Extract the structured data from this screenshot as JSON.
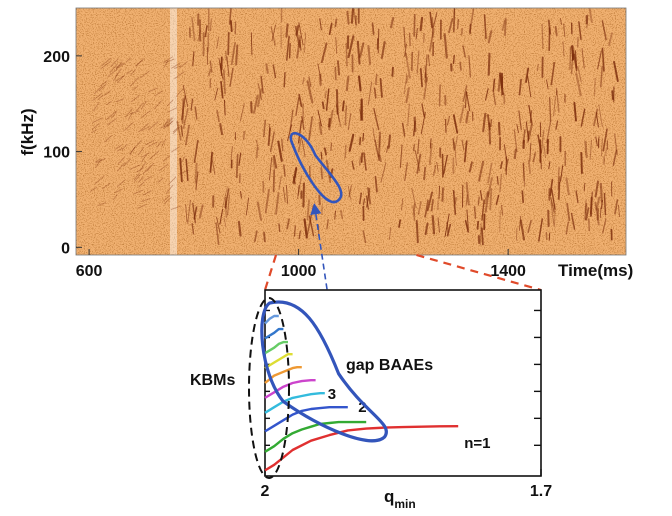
{
  "colors": {
    "spectrogram_background": "#f0b070",
    "spectrogram_mode": "#7a2a0a",
    "ellipse_blue": "#3355bb",
    "projection_red": "#e04a2a",
    "kbm_dash": "#111111"
  },
  "chart_data": [
    {
      "type": "heatmap",
      "title": "",
      "xlabel": "Time(ms)",
      "ylabel": "f(kHz)",
      "xlim": [
        575,
        1625
      ],
      "ylim": [
        -8,
        250
      ],
      "x_ticks": [
        {
          "value": 600,
          "label": "600"
        },
        {
          "value": 1000,
          "label": "1000"
        },
        {
          "value": 1400,
          "label": "1400"
        }
      ],
      "y_ticks": [
        {
          "value": 0,
          "label": "0"
        },
        {
          "value": 100,
          "label": "100"
        },
        {
          "value": 200,
          "label": "200"
        }
      ],
      "highlight_region": {
        "time_range": [
          990,
          1080
        ],
        "freq_range": [
          50,
          115
        ]
      },
      "zoom_range": {
        "time": [
          575,
          1225
        ]
      }
    },
    {
      "type": "line",
      "title": "",
      "xlabel": "q",
      "xlabel_subscript": "min",
      "ylabel": "",
      "xlim": [
        2.0,
        1.7
      ],
      "ylim": [
        0,
        1
      ],
      "x_ticks": [
        {
          "value": 2.0,
          "label": "2"
        },
        {
          "value": 1.7,
          "label": "1.7"
        }
      ],
      "y_ticks": [
        0.165,
        0.31,
        0.455,
        0.6,
        0.745,
        0.89
      ],
      "series": [
        {
          "name": "n=1",
          "color": "#e03030",
          "x": [
            2.0,
            1.99,
            1.98,
            1.97,
            1.95,
            1.93,
            1.91,
            1.89,
            1.87,
            1.85,
            1.83,
            1.81,
            1.79
          ],
          "y": [
            0.03,
            0.06,
            0.1,
            0.14,
            0.19,
            0.22,
            0.245,
            0.255,
            0.26,
            0.263,
            0.265,
            0.267,
            0.268
          ]
        },
        {
          "name": "2",
          "color": "#33aa33",
          "x": [
            2.0,
            1.99,
            1.98,
            1.97,
            1.96,
            1.95,
            1.94,
            1.93,
            1.92,
            1.91,
            1.9,
            1.89
          ],
          "y": [
            0.13,
            0.16,
            0.2,
            0.23,
            0.25,
            0.265,
            0.28,
            0.285,
            0.29,
            0.29,
            0.29,
            0.29
          ]
        },
        {
          "name": "3",
          "color": "#3355cc",
          "x": [
            2.0,
            1.99,
            1.98,
            1.97,
            1.96,
            1.95,
            1.94,
            1.93,
            1.92,
            1.91
          ],
          "y": [
            0.24,
            0.27,
            0.3,
            0.33,
            0.35,
            0.36,
            0.365,
            0.37,
            0.37,
            0.37
          ]
        },
        {
          "name": "",
          "color": "#33bbdd",
          "x": [
            2.0,
            1.99,
            1.98,
            1.97,
            1.96,
            1.95,
            1.94,
            1.935
          ],
          "y": [
            0.34,
            0.37,
            0.4,
            0.42,
            0.43,
            0.44,
            0.445,
            0.445
          ]
        },
        {
          "name": "",
          "color": "#cc44cc",
          "x": [
            2.0,
            1.99,
            1.98,
            1.97,
            1.96,
            1.95,
            1.945
          ],
          "y": [
            0.42,
            0.45,
            0.48,
            0.5,
            0.51,
            0.515,
            0.515
          ]
        },
        {
          "name": "",
          "color": "#ee9933",
          "x": [
            2.0,
            1.99,
            1.98,
            1.97,
            1.965,
            1.96
          ],
          "y": [
            0.5,
            0.54,
            0.56,
            0.58,
            0.585,
            0.585
          ]
        },
        {
          "name": "",
          "color": "#dddd33",
          "x": [
            2.0,
            1.99,
            1.98,
            1.975,
            1.97
          ],
          "y": [
            0.58,
            0.61,
            0.64,
            0.655,
            0.655
          ]
        },
        {
          "name": "",
          "color": "#66cc66",
          "x": [
            2.0,
            1.99,
            1.985,
            1.98,
            1.975
          ],
          "y": [
            0.66,
            0.69,
            0.71,
            0.72,
            0.72
          ]
        },
        {
          "name": "",
          "color": "#3377cc",
          "x": [
            2.0,
            1.99,
            1.985,
            1.98
          ],
          "y": [
            0.74,
            0.77,
            0.79,
            0.79
          ]
        },
        {
          "name": "",
          "color": "#6699dd",
          "x": [
            2.0,
            1.995,
            1.99,
            1.985
          ],
          "y": [
            0.82,
            0.845,
            0.86,
            0.86
          ]
        }
      ],
      "annotations": [
        {
          "text": "gap BAAEs"
        },
        {
          "text": "KBMs"
        }
      ]
    }
  ]
}
